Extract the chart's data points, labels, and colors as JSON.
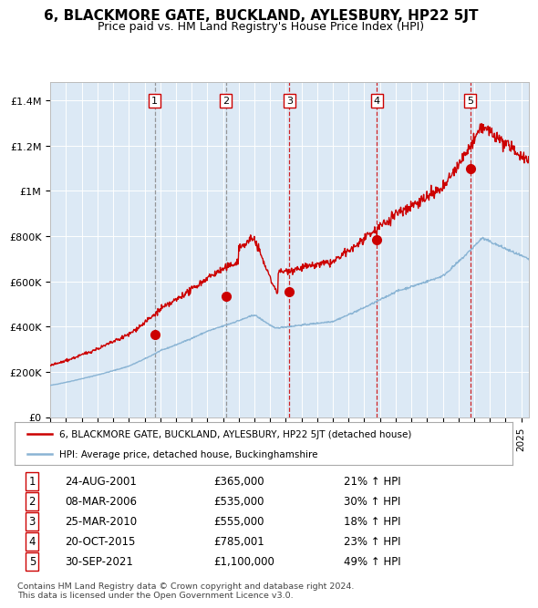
{
  "title": "6, BLACKMORE GATE, BUCKLAND, AYLESBURY, HP22 5JT",
  "subtitle": "Price paid vs. HM Land Registry's House Price Index (HPI)",
  "title_fontsize": 11,
  "subtitle_fontsize": 9,
  "background_color": "#ffffff",
  "plot_bg_color": "#dce9f5",
  "grid_color": "#ffffff",
  "ylabel_ticks": [
    "£0",
    "£200K",
    "£400K",
    "£600K",
    "£800K",
    "£1M",
    "£1.2M",
    "£1.4M"
  ],
  "ytick_values": [
    0,
    200000,
    400000,
    600000,
    800000,
    1000000,
    1200000,
    1400000
  ],
  "ylim": [
    0,
    1480000
  ],
  "xlim_start": 1995.0,
  "xlim_end": 2025.5,
  "sale_dates": [
    2001.648,
    2006.18,
    2010.228,
    2015.803,
    2021.748
  ],
  "sale_prices": [
    365000,
    535000,
    555000,
    785001,
    1100000
  ],
  "sale_labels": [
    "1",
    "2",
    "3",
    "4",
    "5"
  ],
  "vline_colors": [
    "#888888",
    "#888888",
    "#cc0000",
    "#cc0000",
    "#cc0000"
  ],
  "hpi_color": "#8ab4d4",
  "price_color": "#cc0000",
  "legend_label_price": "6, BLACKMORE GATE, BUCKLAND, AYLESBURY, HP22 5JT (detached house)",
  "legend_label_hpi": "HPI: Average price, detached house, Buckinghamshire",
  "table_data": [
    [
      "1",
      "24-AUG-2001",
      "£365,000",
      "21% ↑ HPI"
    ],
    [
      "2",
      "08-MAR-2006",
      "£535,000",
      "30% ↑ HPI"
    ],
    [
      "3",
      "25-MAR-2010",
      "£555,000",
      "18% ↑ HPI"
    ],
    [
      "4",
      "20-OCT-2015",
      "£785,001",
      "23% ↑ HPI"
    ],
    [
      "5",
      "30-SEP-2021",
      "£1,100,000",
      "49% ↑ HPI"
    ]
  ],
  "footer": "Contains HM Land Registry data © Crown copyright and database right 2024.\nThis data is licensed under the Open Government Licence v3.0."
}
